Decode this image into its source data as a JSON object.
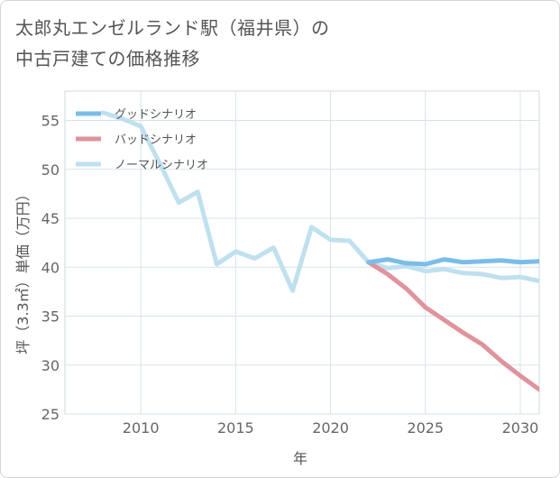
{
  "chart_data": {
    "type": "line",
    "title_lines": [
      "太郎丸エンゼルランド駅（福井県）の",
      "中古戸建ての価格推移"
    ],
    "xlabel": "年",
    "ylabel": "坪（3.3㎡）単価（万円）",
    "xlim": [
      2006,
      2031
    ],
    "ylim": [
      25,
      58
    ],
    "xticks": [
      2010,
      2015,
      2020,
      2025,
      2030
    ],
    "yticks": [
      25,
      30,
      35,
      40,
      45,
      50,
      55
    ],
    "series": [
      {
        "name": "グッドシナリオ",
        "color": "#7bbde9",
        "x": [
          2022,
          2023,
          2024,
          2025,
          2026,
          2027,
          2028,
          2029,
          2030,
          2031
        ],
        "y": [
          40.5,
          40.8,
          40.4,
          40.3,
          40.8,
          40.5,
          40.6,
          40.7,
          40.5,
          40.6
        ]
      },
      {
        "name": "バッドシナリオ",
        "color": "#e0939c",
        "x": [
          2022,
          2023,
          2024,
          2025,
          2026,
          2027,
          2028,
          2029,
          2030,
          2031
        ],
        "y": [
          40.5,
          39.3,
          37.8,
          35.9,
          34.6,
          33.3,
          32.1,
          30.4,
          28.9,
          27.5
        ]
      },
      {
        "name": "ノーマルシナリオ",
        "color": "#bfe0ef",
        "x": [
          2008,
          2009,
          2010,
          2011,
          2012,
          2013,
          2014,
          2015,
          2016,
          2017,
          2018,
          2019,
          2020,
          2021,
          2022,
          2023,
          2024,
          2025,
          2026,
          2027,
          2028,
          2029,
          2030,
          2031
        ],
        "y": [
          55.8,
          55.2,
          54.4,
          50.6,
          46.6,
          47.7,
          40.3,
          41.6,
          40.9,
          42.0,
          37.6,
          44.1,
          42.8,
          42.7,
          40.5,
          39.9,
          40.1,
          39.6,
          39.8,
          39.4,
          39.3,
          38.9,
          39.0,
          38.6
        ]
      }
    ]
  }
}
